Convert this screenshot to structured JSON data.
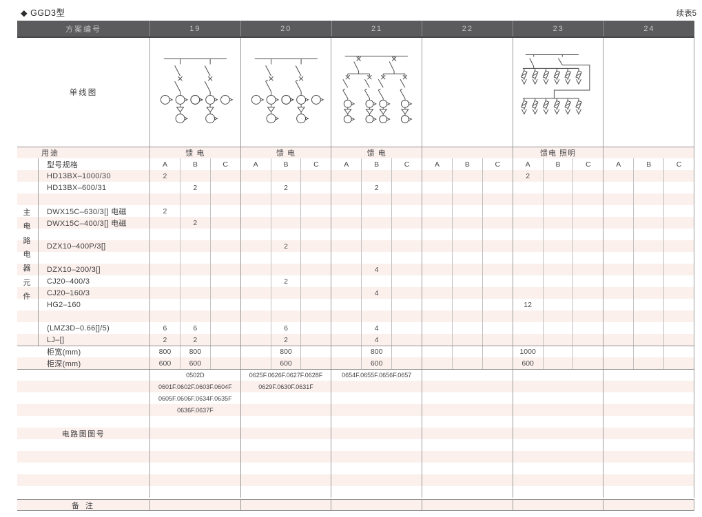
{
  "page": {
    "title": "◆ GGD3型",
    "continuation": "续表5"
  },
  "table": {
    "header": {
      "label": "方案编号",
      "schemes": [
        "19",
        "20",
        "21",
        "22",
        "23",
        "24"
      ]
    },
    "diagram_label": "单线图",
    "diagrams": [
      "two-feeder-circuits",
      "two-feeder-circuits-with-breaker",
      "four-feeder-circuits",
      "",
      "feeder-lighting-two-tier",
      ""
    ],
    "usage_row": {
      "label": "用途",
      "values": [
        "馈 电",
        "馈 电",
        "馈 电",
        "",
        "馈电 照明",
        ""
      ]
    },
    "spec_label": "型号规格",
    "sub_columns": [
      "A",
      "B",
      "C"
    ],
    "side_label": "主电路电器元件",
    "component_rows": [
      {
        "label": "HD13BX–1000/30",
        "values": [
          "2",
          "",
          "",
          "",
          "",
          "",
          "",
          "",
          "",
          "",
          "",
          "",
          "2",
          "",
          "",
          "",
          "",
          ""
        ]
      },
      {
        "label": "HD13BX–600/31",
        "values": [
          "",
          "2",
          "",
          "",
          "2",
          "",
          "",
          "2",
          "",
          "",
          "",
          "",
          "",
          "",
          "",
          "",
          "",
          ""
        ]
      },
      {
        "label": "",
        "values": [
          "",
          "",
          "",
          "",
          "",
          "",
          "",
          "",
          "",
          "",
          "",
          "",
          "",
          "",
          "",
          "",
          "",
          ""
        ]
      },
      {
        "label": "DWX15C–630/3[] 电磁",
        "values": [
          "2",
          "",
          "",
          "",
          "",
          "",
          "",
          "",
          "",
          "",
          "",
          "",
          "",
          "",
          "",
          "",
          "",
          ""
        ]
      },
      {
        "label": "DWX15C–400/3[] 电磁",
        "values": [
          "",
          "2",
          "",
          "",
          "",
          "",
          "",
          "",
          "",
          "",
          "",
          "",
          "",
          "",
          "",
          "",
          "",
          ""
        ]
      },
      {
        "label": "",
        "values": [
          "",
          "",
          "",
          "",
          "",
          "",
          "",
          "",
          "",
          "",
          "",
          "",
          "",
          "",
          "",
          "",
          "",
          ""
        ]
      },
      {
        "label": "DZX10–400P/3[]",
        "values": [
          "",
          "",
          "",
          "",
          "2",
          "",
          "",
          "",
          "",
          "",
          "",
          "",
          "",
          "",
          "",
          "",
          "",
          ""
        ]
      },
      {
        "label": "",
        "values": [
          "",
          "",
          "",
          "",
          "",
          "",
          "",
          "",
          "",
          "",
          "",
          "",
          "",
          "",
          "",
          "",
          "",
          ""
        ]
      },
      {
        "label": "DZX10–200/3[]",
        "values": [
          "",
          "",
          "",
          "",
          "",
          "",
          "",
          "4",
          "",
          "",
          "",
          "",
          "",
          "",
          "",
          "",
          "",
          ""
        ]
      },
      {
        "label": "CJ20–400/3",
        "values": [
          "",
          "",
          "",
          "",
          "2",
          "",
          "",
          "",
          "",
          "",
          "",
          "",
          "",
          "",
          "",
          "",
          "",
          ""
        ]
      },
      {
        "label": "CJ20–160/3",
        "values": [
          "",
          "",
          "",
          "",
          "",
          "",
          "",
          "4",
          "",
          "",
          "",
          "",
          "",
          "",
          "",
          "",
          "",
          ""
        ]
      },
      {
        "label": "HG2–160",
        "values": [
          "",
          "",
          "",
          "",
          "",
          "",
          "",
          "",
          "",
          "",
          "",
          "",
          "12",
          "",
          "",
          "",
          "",
          ""
        ]
      },
      {
        "label": "",
        "values": [
          "",
          "",
          "",
          "",
          "",
          "",
          "",
          "",
          "",
          "",
          "",
          "",
          "",
          "",
          "",
          "",
          "",
          ""
        ]
      },
      {
        "label": "(LMZ3D–0.66[]/5)",
        "values": [
          "6",
          "6",
          "",
          "",
          "6",
          "",
          "",
          "4",
          "",
          "",
          "",
          "",
          "",
          "",
          "",
          "",
          "",
          ""
        ]
      },
      {
        "label": "LJ–[]",
        "values": [
          "2",
          "2",
          "",
          "",
          "2",
          "",
          "",
          "4",
          "",
          "",
          "",
          "",
          "",
          "",
          "",
          "",
          "",
          ""
        ]
      }
    ],
    "cabinet_rows": [
      {
        "label": "柜宽(mm)",
        "values": [
          "800",
          "800",
          "",
          "",
          "800",
          "",
          "",
          "800",
          "",
          "",
          "",
          "",
          "1000",
          "",
          "",
          "",
          "",
          ""
        ]
      },
      {
        "label": "柜深(mm)",
        "values": [
          "600",
          "600",
          "",
          "",
          "600",
          "",
          "",
          "600",
          "",
          "",
          "",
          "",
          "600",
          "",
          "",
          "",
          "",
          ""
        ]
      }
    ],
    "circuit_label": "电路图图号",
    "circuit_rows": [
      [
        "0502D",
        "0625F.0626F.0627F.0628F",
        "0654F.0655F.0656F.0657",
        "",
        "",
        ""
      ],
      [
        "0601F.0602F.0603F.0604F",
        "0629F.0630F.0631F",
        "",
        "",
        "",
        ""
      ],
      [
        "0605F.0606F.0634F.0635F",
        "",
        "",
        "",
        "",
        ""
      ],
      [
        "0636F.0637F",
        "",
        "",
        "",
        "",
        ""
      ],
      [
        "",
        "",
        "",
        "",
        "",
        ""
      ],
      [
        "",
        "",
        "",
        "",
        "",
        ""
      ],
      [
        "",
        "",
        "",
        "",
        "",
        ""
      ],
      [
        "",
        "",
        "",
        "",
        "",
        ""
      ],
      [
        "",
        "",
        "",
        "",
        "",
        ""
      ],
      [
        "",
        "",
        "",
        "",
        "",
        ""
      ],
      [
        "",
        "",
        "",
        "",
        "",
        ""
      ]
    ],
    "remark_row": {
      "label": "备 注",
      "values": [
        "",
        "",
        "",
        "",
        "",
        ""
      ]
    }
  },
  "colors": {
    "stripe_pink": "#fcf0ec",
    "header_bg": "#5b5b5d",
    "grid_line": "#9b9b9b"
  }
}
